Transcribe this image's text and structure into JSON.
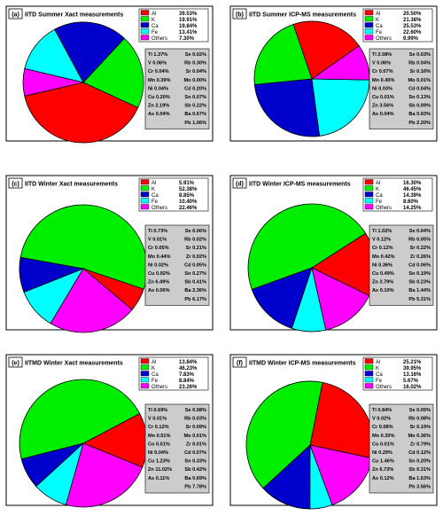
{
  "legend_labels": [
    "Al",
    "K",
    "Ca",
    "Fe",
    "Others"
  ],
  "colors": {
    "Al": "#ff0000",
    "K": "#00ee00",
    "Ca": "#0000cc",
    "Fe": "#00ffff",
    "Others": "#ff00ff",
    "box": "#cccccc",
    "panel_border": "#000000"
  },
  "chart_data": [
    {
      "type": "pie",
      "panel": "(a)",
      "title": "IITD Summer Xact measurements",
      "labels": [
        "Al",
        "K",
        "Ca",
        "Fe",
        "Others"
      ],
      "values_text": [
        "39.53%",
        "19.91%",
        "19.84%",
        "13.41%",
        "7.30%"
      ],
      "values": [
        39.53,
        19.91,
        19.84,
        13.41,
        7.3
      ],
      "others_breakdown": [
        [
          "Ti 1.37%",
          "Se 0.02%"
        ],
        [
          "V 0.06%",
          "Rb 0.30%"
        ],
        [
          "Cr 0.04%",
          "Sr 0.04%"
        ],
        [
          "Mn 0.39%",
          "Mo 0.00%"
        ],
        [
          "Ni 0.04%",
          "Cd 0.20%"
        ],
        [
          "Cu 0.20%",
          "Sn 0.07%"
        ],
        [
          "Zn 2.19%",
          "Sb 0.22%"
        ],
        [
          "As 0.04%",
          "Ba 0.67%"
        ],
        [
          "",
          "Pb 1.06%"
        ]
      ]
    },
    {
      "type": "pie",
      "panel": "(b)",
      "title": "IITD Summer ICP-MS measurements",
      "labels": [
        "Al",
        "K",
        "Ca",
        "Fe",
        "Others"
      ],
      "values_text": [
        "20.50%",
        "21.38%",
        "25.53%",
        "22.60%",
        "9.99%"
      ],
      "values": [
        20.5,
        21.38,
        25.53,
        22.6,
        9.99
      ],
      "others_breakdown": [
        [
          "Ti 2.08%",
          "Se 0.03%"
        ],
        [
          "V 0.06%",
          "Rb 0.04%"
        ],
        [
          "Cr 0.07%",
          "Sr 0.16%"
        ],
        [
          "Mn 0.40%",
          "Mo 0.01%"
        ],
        [
          "Ni 0.03%",
          "Cd 0.04%"
        ],
        [
          "Cu 0.01%",
          "Sn 0.13%"
        ],
        [
          "Zn 3.56%",
          "Sb 0.09%"
        ],
        [
          "As 0.04%",
          "Ba 0.93%"
        ],
        [
          "",
          "Pb 2.20%"
        ]
      ]
    },
    {
      "type": "pie",
      "panel": "(c)",
      "title": "IITD Winter Xact measurements",
      "labels": [
        "Al",
        "K",
        "Ca",
        "Fe",
        "Others"
      ],
      "values_text": [
        "5.91%",
        "52.38%",
        "8.85%",
        "10.40%",
        "22.46%"
      ],
      "values": [
        5.91,
        52.38,
        8.85,
        10.4,
        22.46
      ],
      "others_breakdown": [
        [
          "Ti 0.73%",
          "Se 0.06%"
        ],
        [
          "V 0.01%",
          "Rb 0.02%"
        ],
        [
          "Cr 0.05%",
          "Sr 0.21%"
        ],
        [
          "Mn 0.44%",
          "Zr 0.02%"
        ],
        [
          "Ni 0.02%",
          "Cd 0.05%"
        ],
        [
          "Cu 0.92%",
          "Sn 0.27%"
        ],
        [
          "Zn 6.49%",
          "Sb 0.41%"
        ],
        [
          "As 0.06%",
          "Ba 2.36%"
        ],
        [
          "",
          "Pb 6.17%"
        ]
      ]
    },
    {
      "type": "pie",
      "panel": "(d)",
      "title": "IITD Winter ICP-MS measurements",
      "labels": [
        "Al",
        "K",
        "Ca",
        "Fe",
        "Others"
      ],
      "values_text": [
        "16.30%",
        "46.45%",
        "14.39%",
        "8.60%",
        "14.25%"
      ],
      "values": [
        16.3,
        46.45,
        14.39,
        8.6,
        14.25
      ],
      "others_breakdown": [
        [
          "Ti 1.02%",
          "Se 0.04%"
        ],
        [
          "V 0.12%",
          "Rb 0.05%"
        ],
        [
          "Cr 0.12%",
          "Sr 0.22%"
        ],
        [
          "Mn 0.42%",
          "Zr 0.26%"
        ],
        [
          "Ni 0.36%",
          "Cd 0.06%"
        ],
        [
          "Cu 0.49%",
          "Sn 0.19%"
        ],
        [
          "Zn 3.79%",
          "Sb 0.23%"
        ],
        [
          "As 0.10%",
          "Ba 1.44%"
        ],
        [
          "",
          "Pb 5.31%"
        ]
      ]
    },
    {
      "type": "pie",
      "panel": "(e)",
      "title": "IITMD Winter Xact measurements",
      "labels": [
        "Al",
        "K",
        "Ca",
        "Fe",
        "Others"
      ],
      "values_text": [
        "13.84%",
        "46.23%",
        "7.83%",
        "8.84%",
        "23.26%"
      ],
      "values": [
        13.84,
        46.23,
        7.83,
        8.84,
        23.26
      ],
      "others_breakdown": [
        [
          "Ti 0.69%",
          "Se 0.08%"
        ],
        [
          "V 0.01%",
          "Rb 0.03%"
        ],
        [
          "Cr 0.12%",
          "Sr 0.09%"
        ],
        [
          "Mn 0.51%",
          "Mo 0.01%"
        ],
        [
          "Co 0.01%",
          "Zr 0.01%"
        ],
        [
          "Ni 0.04%",
          "Cd 0.07%"
        ],
        [
          "Cu 1.23%",
          "Sn 0.33%"
        ],
        [
          "Zn 11.02%",
          "Sb 0.42%"
        ],
        [
          "As 0.11%",
          "Ba 0.69%"
        ],
        [
          "",
          "Pb 7.78%"
        ]
      ]
    },
    {
      "type": "pie",
      "panel": "(f)",
      "title": "IITMD Winter ICP-MS measurements",
      "labels": [
        "Al",
        "K",
        "Ca",
        "Fe",
        "Others"
      ],
      "values_text": [
        "25.21%",
        "39.95%",
        "13.16%",
        "5.67%",
        "16.02%"
      ],
      "values": [
        25.21,
        39.95,
        13.16,
        5.67,
        16.02
      ],
      "others_breakdown": [
        [
          "Ti 0.84%",
          "Se 0.05%"
        ],
        [
          "V 0.02%",
          "Rb 0.08%"
        ],
        [
          "Cr 0.08%",
          "Sr 0.19%"
        ],
        [
          "Mn 0.30%",
          "Mo 0.36%"
        ],
        [
          "Co 0.01%",
          "Zr 0.79%"
        ],
        [
          "Ni 0.29%",
          "Cd 0.12%"
        ],
        [
          "Cu 1.46%",
          "Sn 0.20%"
        ],
        [
          "Zn 6.73%",
          "Sb 0.31%"
        ],
        [
          "As 0.12%",
          "Ba 1.63%"
        ],
        [
          "",
          "Pb 3.56%"
        ]
      ]
    }
  ]
}
